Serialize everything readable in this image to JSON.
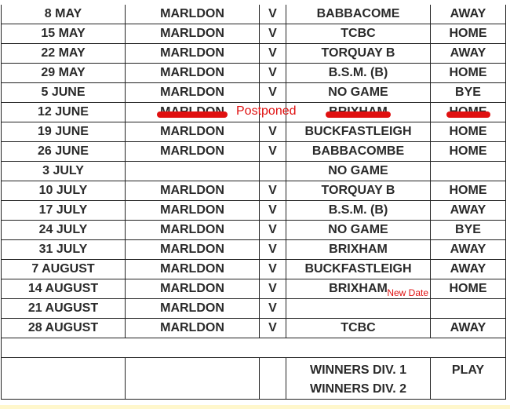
{
  "fixtures": [
    {
      "date": "8 MAY",
      "home": "MARLDON",
      "vs": "V",
      "opponent": "BABBACOME",
      "venue": "AWAY"
    },
    {
      "date": "15 MAY",
      "home": "MARLDON",
      "vs": "V",
      "opponent": "TCBC",
      "venue": "HOME"
    },
    {
      "date": "22 MAY",
      "home": "MARLDON",
      "vs": "V",
      "opponent": "TORQUAY B",
      "venue": "AWAY"
    },
    {
      "date": "29 MAY",
      "home": "MARLDON",
      "vs": "V",
      "opponent": "B.S.M.  (B)",
      "venue": "HOME"
    },
    {
      "date": "5 JUNE",
      "home": "MARLDON",
      "vs": "V",
      "opponent": "NO GAME",
      "venue": "BYE"
    },
    {
      "date": "12 JUNE",
      "home": "MARLDON",
      "vs": "",
      "opponent": "BRIXHAM",
      "venue": "HOME",
      "note": "Postponed",
      "struck": true
    },
    {
      "date": "19 JUNE",
      "home": "MARLDON",
      "vs": "V",
      "opponent": "BUCKFASTLEIGH",
      "venue": "HOME"
    },
    {
      "date": "26 JUNE",
      "home": "MARLDON",
      "vs": "V",
      "opponent": "BABBACOMBE",
      "venue": "HOME"
    },
    {
      "date": "3 JULY",
      "home": "",
      "vs": "",
      "opponent": "NO GAME",
      "venue": ""
    },
    {
      "date": "10 JULY",
      "home": "MARLDON",
      "vs": "V",
      "opponent": "TORQUAY B",
      "venue": "HOME"
    },
    {
      "date": "17 JULY",
      "home": "MARLDON",
      "vs": "V",
      "opponent": "B.S.M. (B)",
      "venue": "AWAY"
    },
    {
      "date": "24 JULY",
      "home": "MARLDON",
      "vs": "V",
      "opponent": "NO GAME",
      "venue": "BYE"
    },
    {
      "date": "31 JULY",
      "home": "MARLDON",
      "vs": "V",
      "opponent": "BRIXHAM",
      "venue": "AWAY"
    },
    {
      "date": "7 AUGUST",
      "home": "MARLDON",
      "vs": "V",
      "opponent": "BUCKFASTLEIGH",
      "venue": "AWAY"
    },
    {
      "date": "14  AUGUST",
      "home": "MARLDON",
      "vs": "V",
      "opponent": "BRIXHAM",
      "venue": "HOME",
      "new_note": "New Date"
    },
    {
      "date": "21 AUGUST",
      "home": "MARLDON",
      "vs": "V",
      "opponent": "",
      "venue": ""
    },
    {
      "date": "28 AUGUST",
      "home": "MARLDON",
      "vs": "V",
      "opponent": "TCBC",
      "venue": "AWAY"
    }
  ],
  "final": {
    "line1": "WINNERS DIV. 1",
    "line2": "WINNERS DIV. 2",
    "venue": "PLAY"
  },
  "colors": {
    "annotation": "#e01010"
  }
}
